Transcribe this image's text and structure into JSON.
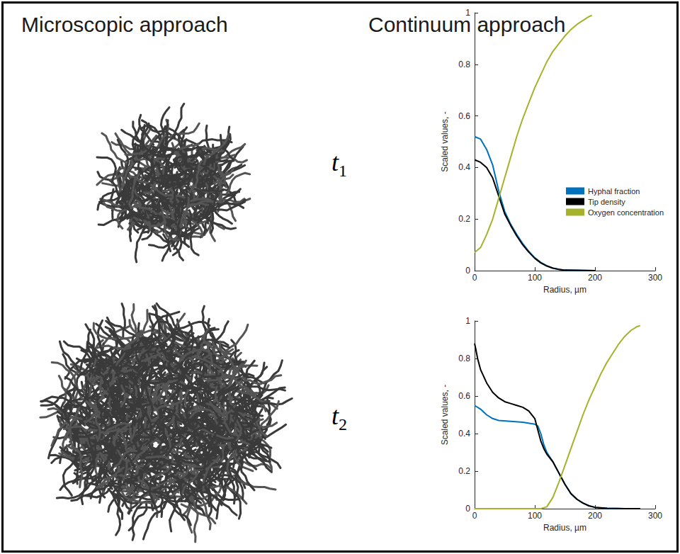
{
  "headers": {
    "left": "Microscopic approach",
    "right": "Continuum approach"
  },
  "time_labels": [
    {
      "symbol": "t",
      "subscript": "1"
    },
    {
      "symbol": "t",
      "subscript": "2"
    }
  ],
  "chart_data": [
    {
      "type": "line",
      "xlabel": "Radius, µm",
      "ylabel": "Scaled values, -",
      "xlim": [
        0,
        300
      ],
      "ylim": [
        0,
        1
      ],
      "xticks": [
        0,
        100,
        200,
        300
      ],
      "yticks": [
        0,
        0.2,
        0.4,
        0.6,
        0.8,
        1
      ],
      "legend": "lower right",
      "series": [
        {
          "name": "Hyphal fraction",
          "color": "#0072BD",
          "x": [
            0,
            10,
            20,
            30,
            40,
            50,
            60,
            70,
            80,
            90,
            100,
            110,
            120,
            130,
            140,
            150,
            200
          ],
          "values": [
            0.52,
            0.51,
            0.47,
            0.41,
            0.31,
            0.23,
            0.18,
            0.14,
            0.105,
            0.075,
            0.05,
            0.032,
            0.019,
            0.01,
            0.005,
            0.002,
            0
          ]
        },
        {
          "name": "Tip density",
          "color": "#000000",
          "x": [
            0,
            10,
            20,
            30,
            40,
            50,
            60,
            70,
            80,
            90,
            100,
            110,
            120,
            130,
            140,
            150,
            200
          ],
          "values": [
            0.43,
            0.42,
            0.4,
            0.36,
            0.29,
            0.22,
            0.175,
            0.135,
            0.1,
            0.072,
            0.048,
            0.03,
            0.018,
            0.01,
            0.005,
            0.002,
            0
          ]
        },
        {
          "name": "Oxygen concentration",
          "color": "#A5B32A",
          "x": [
            0,
            10,
            20,
            30,
            40,
            50,
            60,
            70,
            80,
            90,
            100,
            110,
            120,
            130,
            140,
            150,
            160,
            170,
            180,
            190,
            195
          ],
          "values": [
            0.07,
            0.09,
            0.14,
            0.2,
            0.28,
            0.36,
            0.44,
            0.52,
            0.59,
            0.65,
            0.71,
            0.76,
            0.81,
            0.85,
            0.88,
            0.91,
            0.935,
            0.955,
            0.97,
            0.985,
            0.99
          ]
        }
      ]
    },
    {
      "type": "line",
      "xlabel": "Radius, µm",
      "ylabel": "Scaled values, -",
      "xlim": [
        0,
        300
      ],
      "ylim": [
        0,
        1
      ],
      "xticks": [
        0,
        100,
        200,
        300
      ],
      "yticks": [
        0,
        0.2,
        0.4,
        0.6,
        0.8,
        1
      ],
      "series": [
        {
          "name": "Hyphal fraction",
          "color": "#0072BD",
          "x": [
            0,
            10,
            20,
            30,
            40,
            60,
            80,
            100,
            105,
            110,
            115,
            120,
            130,
            140,
            150,
            160,
            170,
            180,
            190,
            200,
            220,
            250,
            275
          ],
          "values": [
            0.55,
            0.53,
            0.5,
            0.48,
            0.47,
            0.465,
            0.46,
            0.45,
            0.44,
            0.4,
            0.34,
            0.3,
            0.25,
            0.19,
            0.13,
            0.08,
            0.05,
            0.03,
            0.015,
            0.007,
            0.002,
            0,
            0
          ]
        },
        {
          "name": "Tip density",
          "color": "#000000",
          "x": [
            0,
            2,
            5,
            10,
            20,
            30,
            40,
            50,
            60,
            70,
            80,
            90,
            100,
            105,
            110,
            115,
            120,
            130,
            140,
            150,
            160,
            170,
            180,
            190,
            200,
            220,
            250,
            275
          ],
          "values": [
            0.88,
            0.85,
            0.8,
            0.74,
            0.67,
            0.62,
            0.59,
            0.57,
            0.56,
            0.55,
            0.54,
            0.52,
            0.48,
            0.42,
            0.36,
            0.32,
            0.29,
            0.25,
            0.19,
            0.13,
            0.08,
            0.05,
            0.03,
            0.015,
            0.007,
            0.002,
            0,
            0
          ]
        },
        {
          "name": "Oxygen concentration",
          "color": "#A5B32A",
          "x": [
            0,
            50,
            100,
            110,
            120,
            130,
            140,
            150,
            160,
            170,
            180,
            190,
            200,
            210,
            220,
            230,
            240,
            250,
            260,
            270,
            275
          ],
          "values": [
            0,
            0,
            0,
            0,
            0.01,
            0.06,
            0.14,
            0.23,
            0.32,
            0.41,
            0.5,
            0.58,
            0.65,
            0.72,
            0.78,
            0.83,
            0.88,
            0.92,
            0.95,
            0.97,
            0.975
          ]
        }
      ]
    }
  ]
}
